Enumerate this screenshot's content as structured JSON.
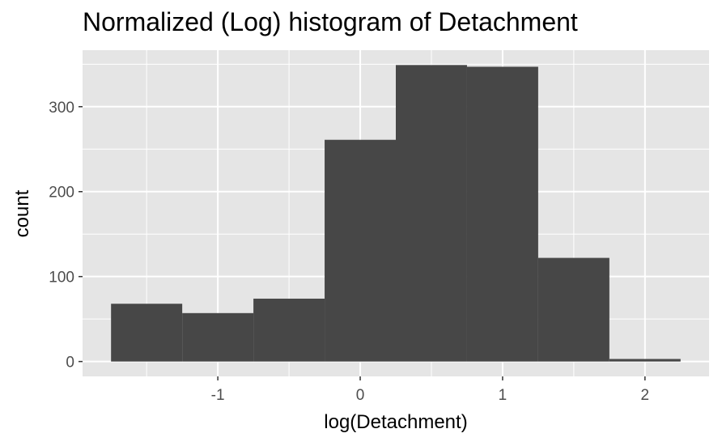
{
  "chart_data": {
    "type": "bar",
    "title": "Normalized (Log) histogram of Detachment",
    "xlabel": "log(Detachment)",
    "ylabel": "count",
    "bin_width": 0.5,
    "bins": [
      {
        "x0": -1.75,
        "x1": -1.25,
        "count": 68
      },
      {
        "x0": -1.25,
        "x1": -0.75,
        "count": 57
      },
      {
        "x0": -0.75,
        "x1": -0.25,
        "count": 74
      },
      {
        "x0": -0.25,
        "x1": 0.25,
        "count": 261
      },
      {
        "x0": 0.25,
        "x1": 0.75,
        "count": 349
      },
      {
        "x0": 0.75,
        "x1": 1.25,
        "count": 347
      },
      {
        "x0": 1.25,
        "x1": 1.75,
        "count": 122
      },
      {
        "x0": 1.75,
        "x1": 2.25,
        "count": 3
      }
    ],
    "x_ticks": [
      -1,
      0,
      1,
      2
    ],
    "x_tick_labels": [
      "-1",
      "0",
      "1",
      "2"
    ],
    "y_ticks": [
      0,
      100,
      200,
      300
    ],
    "y_tick_labels": [
      "0",
      "100",
      "200",
      "300"
    ],
    "xlim": [
      -1.95,
      2.45
    ],
    "ylim": [
      -17.5,
      366.5
    ],
    "grid": true,
    "colors": {
      "panel_background": "#e5e5e5",
      "grid_major": "#ffffff",
      "bar_fill": "#474747"
    }
  }
}
